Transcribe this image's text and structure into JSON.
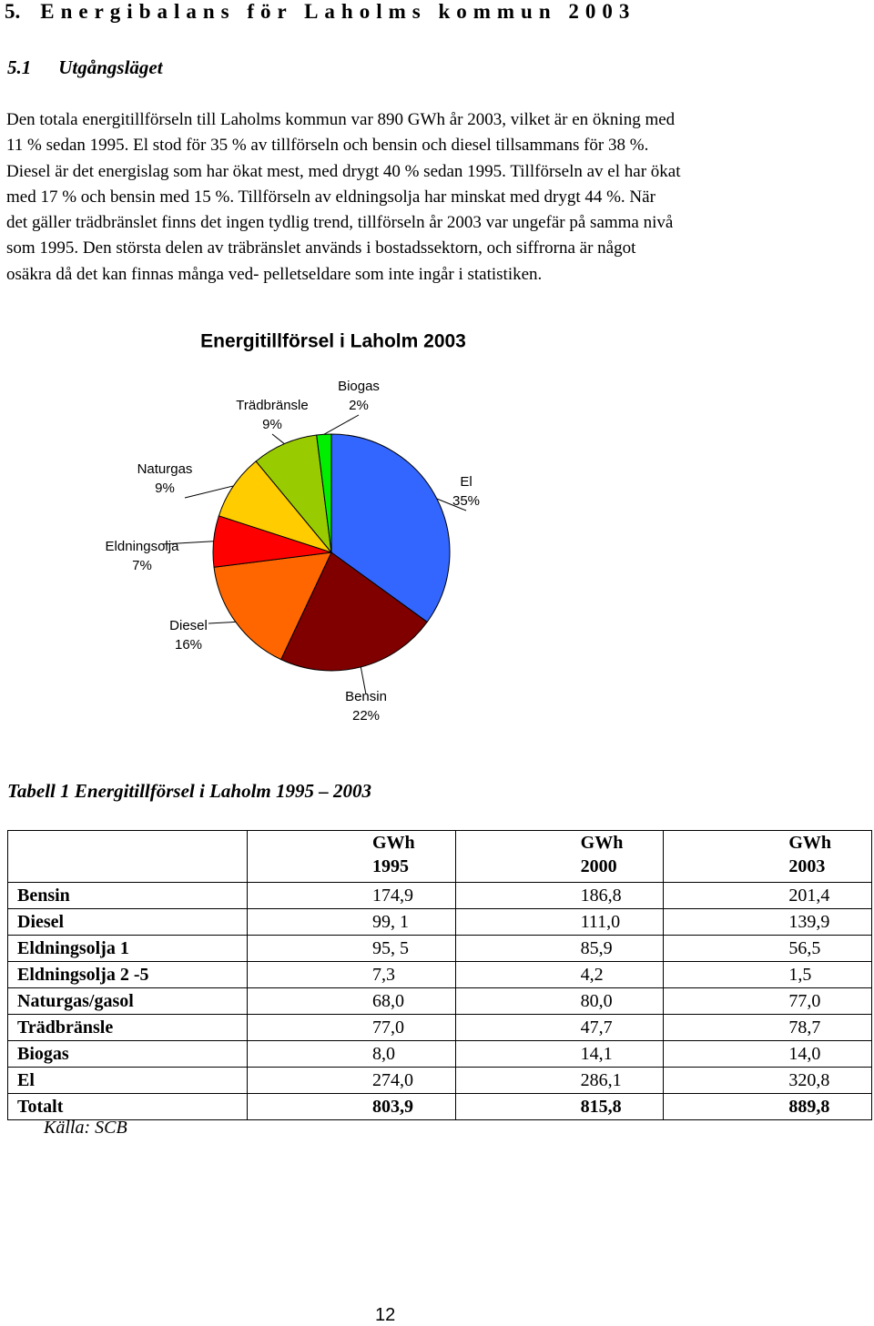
{
  "document": {
    "heading": {
      "number": "5.",
      "text": "Energibalans för Laholms kommun 2003"
    },
    "subheading": {
      "number": "5.1",
      "text": "Utgångsläget"
    },
    "paragraph_lines": [
      "Den totala energitillförseln till Laholms kommun var 890 GWh år 2003, vilket är en ökning med",
      "11 % sedan 1995. El stod för 35 % av tillförseln och bensin och diesel tillsammans för 38 %.",
      "Diesel är det energislag som har ökat mest, med drygt 40 % sedan 1995. Tillförseln av el har ökat",
      "med 17 % och bensin med 15 %. Tillförseln av eldningsolja har minskat med drygt 44 %. När",
      "det gäller trädbränslet finns det ingen tydlig trend, tillförseln år 2003 var ungefär på samma nivå",
      "som 1995. Den största delen av träbränslet används i bostadssektorn, och siffrorna är något",
      "osäkra då det kan finnas många ved- pelletseldare som inte ingår i statistiken."
    ],
    "table_caption": "Tabell 1 Energitillförsel i Laholm 1995 – 2003",
    "table": {
      "header": [
        {
          "unit": "GWh",
          "year": "1995"
        },
        {
          "unit": "GWh",
          "year": "2000"
        },
        {
          "unit": "GWh",
          "year": "2003"
        }
      ],
      "rows": [
        [
          "Bensin",
          "174,9",
          "186,8",
          "201,4"
        ],
        [
          "Diesel",
          "99, 1",
          "111,0",
          "139,9"
        ],
        [
          "Eldningsolja 1",
          "95, 5",
          "85,9",
          "56,5"
        ],
        [
          "Eldningsolja 2 -5",
          "7,3",
          "4,2",
          "1,5"
        ],
        [
          "Naturgas/gasol",
          "68,0",
          "80,0",
          "77,0"
        ],
        [
          "Trädbränsle",
          "77,0",
          "47,7",
          "78,7"
        ],
        [
          "Biogas",
          "8,0",
          "14,1",
          "14,0"
        ],
        [
          "El",
          "274,0",
          "286,1",
          "320,8"
        ]
      ],
      "total": [
        "Totalt",
        "803,9",
        "815,8",
        "889,8"
      ]
    },
    "source": "Källa: SCB",
    "page_number": "12"
  },
  "chart_data": {
    "type": "pie",
    "title": "Energitillförsel i Laholm 2003",
    "categories": [
      "El",
      "Bensin",
      "Diesel",
      "Eldningsolja",
      "Naturgas",
      "Trädbränsle",
      "Biogas"
    ],
    "values": [
      35,
      22,
      16,
      7,
      9,
      9,
      2
    ],
    "value_labels": [
      "35%",
      "22%",
      "16%",
      "7%",
      "9%",
      "9%",
      "2%"
    ],
    "colors": [
      "#3366ff",
      "#800000",
      "#ff6600",
      "#ff0000",
      "#ffcc00",
      "#99cc00",
      "#00ee00"
    ]
  }
}
